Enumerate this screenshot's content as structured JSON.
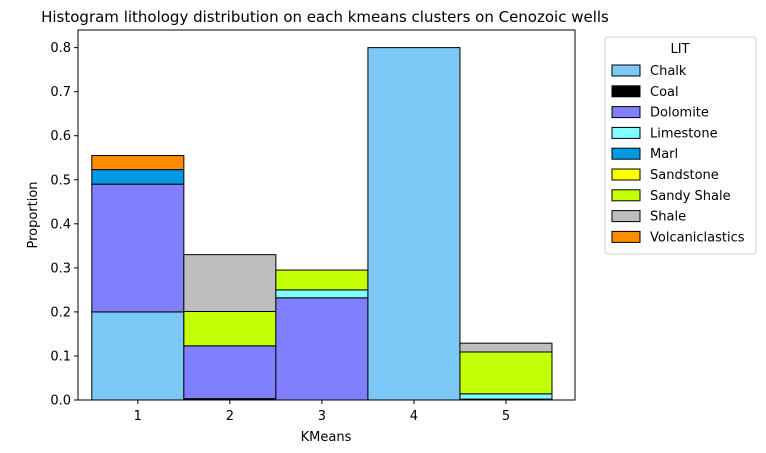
{
  "chart_data": {
    "type": "bar",
    "stacked": true,
    "title": "Histogram lithology distribution on each kmeans clusters on Cenozoic wells",
    "xlabel": "KMeans",
    "ylabel": "Proportion",
    "categories": [
      "1",
      "2",
      "3",
      "4",
      "5"
    ],
    "ylim": [
      0,
      0.84
    ],
    "xlim": [
      0.35,
      5.75
    ],
    "yticks": [
      0.0,
      0.1,
      0.2,
      0.3,
      0.4,
      0.5,
      0.6,
      0.7,
      0.8
    ],
    "ytick_labels": [
      "0.0",
      "0.1",
      "0.2",
      "0.3",
      "0.4",
      "0.5",
      "0.6",
      "0.7",
      "0.8"
    ],
    "grid": false,
    "legend": {
      "title": "LIT",
      "placement": "outside-right"
    },
    "series": [
      {
        "name": "Chalk",
        "color": "#7cc8f6",
        "values": [
          0.2,
          0.0,
          0.0,
          0.8,
          0.0
        ]
      },
      {
        "name": "Coal",
        "color": "#000000",
        "values": [
          0.0,
          0.003,
          0.0,
          0.0,
          0.0
        ]
      },
      {
        "name": "Dolomite",
        "color": "#8080ff",
        "values": [
          0.29,
          0.12,
          0.232,
          0.0,
          0.002
        ]
      },
      {
        "name": "Limestone",
        "color": "#80ffff",
        "values": [
          0.0,
          0.0,
          0.018,
          0.0,
          0.012
        ]
      },
      {
        "name": "Marl",
        "color": "#0099e6",
        "values": [
          0.033,
          0.0,
          0.0,
          0.0,
          0.0
        ]
      },
      {
        "name": "Sandstone",
        "color": "#ffff00",
        "values": [
          0.0,
          0.0,
          0.0,
          0.0,
          0.0
        ]
      },
      {
        "name": "Sandy Shale",
        "color": "#c4ff08",
        "values": [
          0.0,
          0.078,
          0.045,
          0.0,
          0.095
        ]
      },
      {
        "name": "Shale",
        "color": "#bebebe",
        "values": [
          0.0,
          0.129,
          0.0,
          0.0,
          0.02
        ]
      },
      {
        "name": "Volcaniclastics",
        "color": "#ff8c00",
        "values": [
          0.032,
          0.0,
          0.0,
          0.0,
          0.0
        ]
      }
    ]
  }
}
